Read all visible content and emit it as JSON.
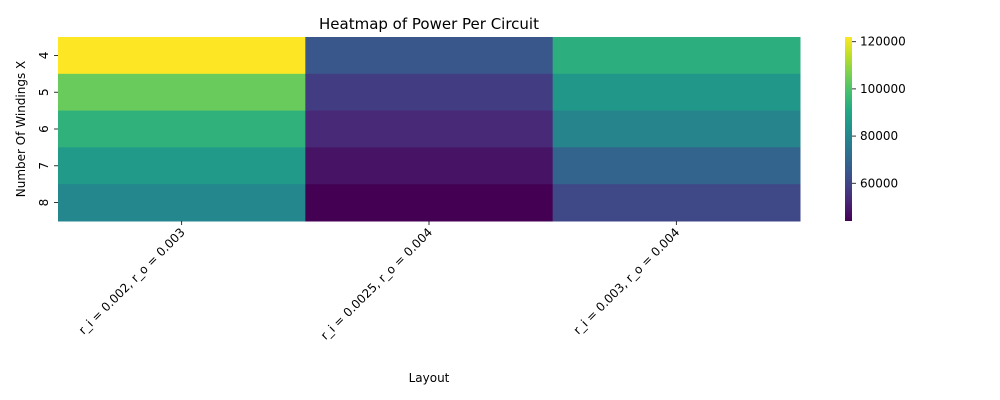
{
  "chart_data": {
    "type": "heatmap",
    "title": "Heatmap of Power Per Circuit",
    "xlabel": "Layout",
    "ylabel": "Number Of Windings X",
    "x_categories": [
      "r_i = 0.002, r_o = 0.003",
      "r_i = 0.0025, r_o = 0.004",
      "r_i = 0.003, r_o = 0.004"
    ],
    "y_categories": [
      "4",
      "5",
      "6",
      "7",
      "8"
    ],
    "values": [
      [
        122000,
        65000,
        93000
      ],
      [
        104000,
        58000,
        85000
      ],
      [
        94000,
        53000,
        79000
      ],
      [
        86000,
        48000,
        69000
      ],
      [
        80000,
        44000,
        61000
      ]
    ],
    "colorscale": "viridis",
    "colorbar": {
      "min": 44000,
      "max": 122000,
      "ticks": [
        60000,
        80000,
        100000,
        120000
      ],
      "tick_labels": [
        "60000",
        "80000",
        "100000",
        "120000"
      ]
    },
    "grid": false
  }
}
